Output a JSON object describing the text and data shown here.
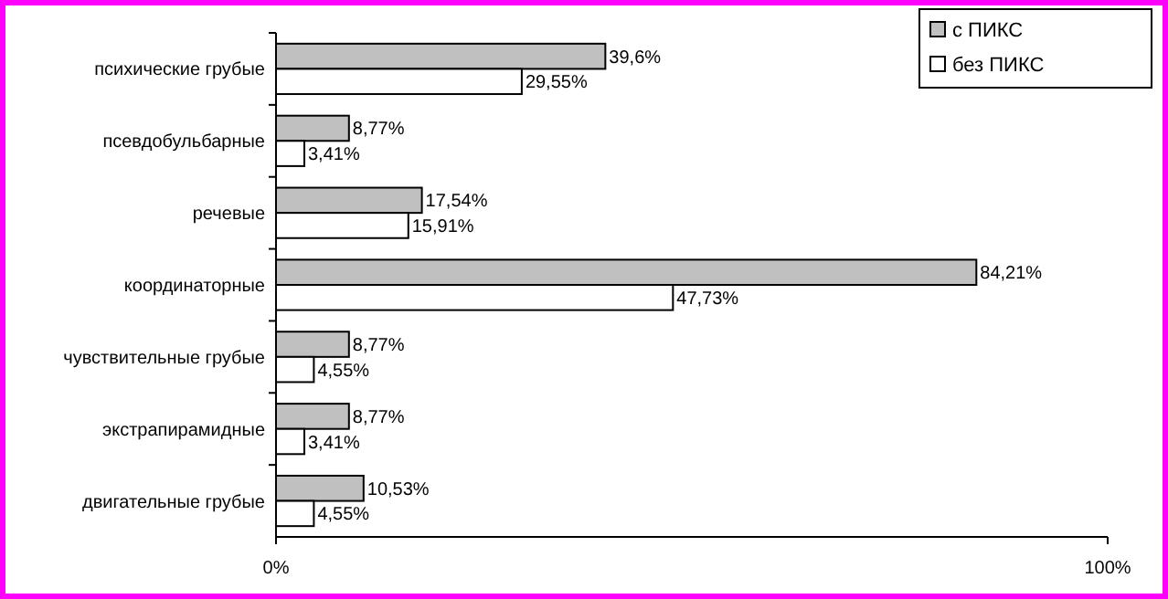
{
  "chart_data": {
    "type": "bar",
    "orientation": "horizontal",
    "categories": [
      "психические грубые",
      "псевдобульбарные",
      "речевые",
      "координаторные",
      "чувствительные грубые",
      "экстрапирамидные",
      "двигательные грубые"
    ],
    "series": [
      {
        "name": "с ПИКС",
        "color": "#c0c0c0",
        "values": [
          39.6,
          8.77,
          17.54,
          84.21,
          8.77,
          8.77,
          10.53
        ],
        "value_labels": [
          "39,6%",
          "8,77%",
          "17,54%",
          "84,21%",
          "8,77%",
          "8,77%",
          "10,53%"
        ]
      },
      {
        "name": "без ПИКС",
        "color": "#ffffff",
        "values": [
          29.55,
          3.41,
          15.91,
          47.73,
          4.55,
          3.41,
          4.55
        ],
        "value_labels": [
          "29,55%",
          "3,41%",
          "15,91%",
          "47,73%",
          "4,55%",
          "3,41%",
          "4,55%"
        ]
      }
    ],
    "xlim": [
      0,
      100
    ],
    "xticks": [
      {
        "value": 0,
        "label": "0%"
      },
      {
        "value": 100,
        "label": "100%"
      }
    ],
    "legend": "top right",
    "grid": false
  }
}
